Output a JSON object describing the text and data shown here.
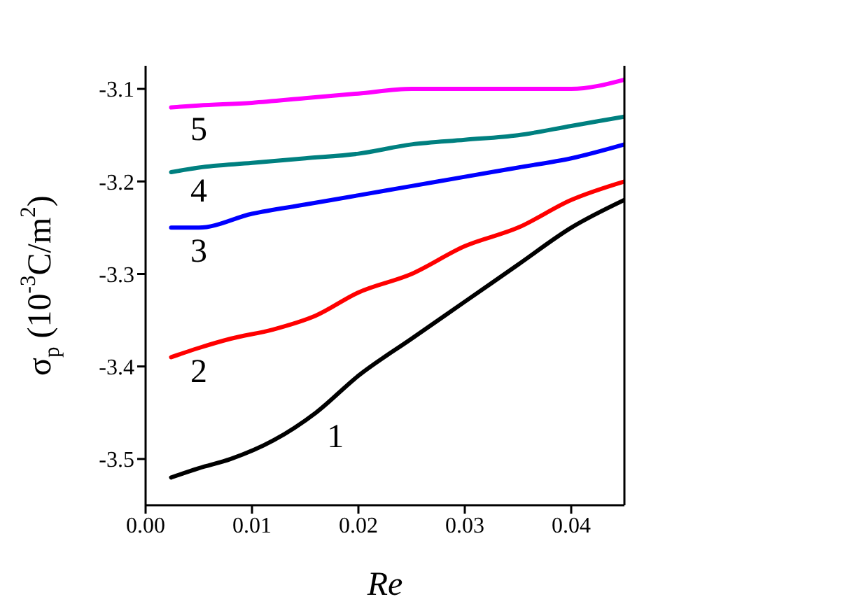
{
  "chart_data": {
    "type": "line",
    "xlabel": "Re",
    "ylabel": "σ$_{p}$ (10$^{-3}$C/m$^{2}$)",
    "xlim": [
      0,
      0.045
    ],
    "ylim": [
      -3.55,
      -3.075
    ],
    "xticks": [
      "0.00",
      0.01,
      0.02,
      0.03,
      0.04
    ],
    "yticks": [
      -3.5,
      -3.4,
      -3.3,
      -3.2,
      -3.1
    ],
    "grid": false,
    "marker": "none",
    "line_style": "solid",
    "series": [
      {
        "name": "1",
        "color": "#000000",
        "x": [
          0.0024,
          0.005,
          0.008,
          0.012,
          0.016,
          0.02,
          0.025,
          0.03,
          0.035,
          0.04,
          0.045
        ],
        "values": [
          -3.52,
          -3.51,
          -3.5,
          -3.48,
          -3.45,
          -3.41,
          -3.37,
          -3.33,
          -3.29,
          -3.25,
          -3.22
        ]
      },
      {
        "name": "2",
        "color": "#ff0000",
        "x": [
          0.0024,
          0.005,
          0.008,
          0.012,
          0.016,
          0.02,
          0.025,
          0.03,
          0.035,
          0.04,
          0.045
        ],
        "values": [
          -3.39,
          -3.38,
          -3.37,
          -3.36,
          -3.345,
          -3.32,
          -3.3,
          -3.27,
          -3.25,
          -3.22,
          -3.2
        ]
      },
      {
        "name": "3",
        "color": "#0000ff",
        "x": [
          0.0024,
          0.005,
          0.01,
          0.015,
          0.02,
          0.025,
          0.03,
          0.035,
          0.04,
          0.045
        ],
        "values": [
          -3.25,
          -3.25,
          -3.235,
          -3.225,
          -3.215,
          -3.205,
          -3.195,
          -3.185,
          -3.175,
          -3.16
        ]
      },
      {
        "name": "4",
        "color": "#008080",
        "x": [
          0.0024,
          0.005,
          0.01,
          0.015,
          0.02,
          0.025,
          0.03,
          0.035,
          0.04,
          0.045
        ],
        "values": [
          -3.19,
          -3.185,
          -3.18,
          -3.175,
          -3.17,
          -3.16,
          -3.155,
          -3.15,
          -3.14,
          -3.13
        ]
      },
      {
        "name": "5",
        "color": "#ff00ff",
        "x": [
          0.0024,
          0.005,
          0.01,
          0.015,
          0.02,
          0.025,
          0.03,
          0.035,
          0.04,
          0.045
        ],
        "values": [
          -3.12,
          -3.118,
          -3.115,
          -3.11,
          -3.105,
          -3.1,
          -3.1,
          -3.1,
          -3.1,
          -3.09
        ]
      }
    ]
  }
}
